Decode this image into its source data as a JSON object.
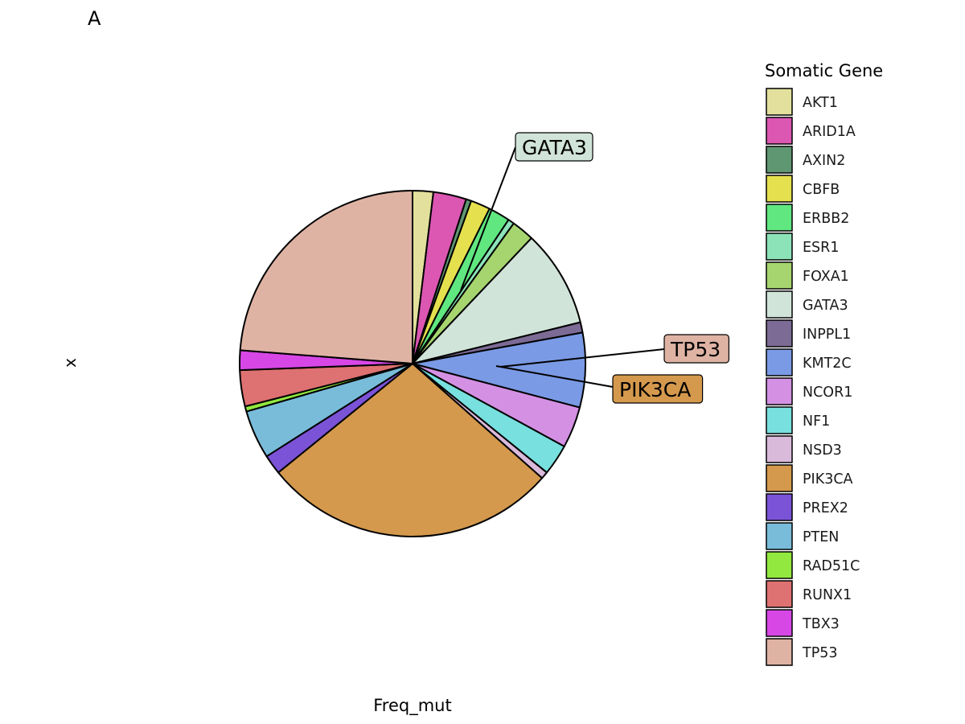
{
  "panel_tag": "A",
  "chart_data": {
    "type": "pie",
    "title": "",
    "xlabel": "Freq_mut",
    "ylabel": "x",
    "legend": {
      "title": "Somatic Gene",
      "placement": "right"
    },
    "categories": [
      "AKT1",
      "ARID1A",
      "AXIN2",
      "CBFB",
      "ERBB2",
      "ESR1",
      "FOXA1",
      "GATA3",
      "INPPL1",
      "KMT2C",
      "NCOR1",
      "NF1",
      "NSD3",
      "PIK3CA",
      "PREX2",
      "PTEN",
      "RAD51C",
      "RUNX1",
      "TBX3",
      "TP53"
    ],
    "values": [
      2.0,
      3.2,
      0.5,
      1.9,
      2.1,
      0.6,
      2.2,
      9.4,
      1.0,
      7.2,
      4.0,
      3.0,
      0.7,
      28.6,
      1.9,
      4.7,
      0.5,
      3.5,
      1.9,
      24.6
    ],
    "colors": [
      "#e3e09d",
      "#db57b2",
      "#609773",
      "#e5e04e",
      "#60e780",
      "#8ce3b8",
      "#a6d56f",
      "#d1e4d9",
      "#7c6b95",
      "#7a9ae5",
      "#d491e4",
      "#78e0de",
      "#dabadb",
      "#d4994d",
      "#7b53d7",
      "#79bcda",
      "#92e83f",
      "#de7171",
      "#d747e6",
      "#dfb3a4"
    ],
    "start_angle_deg": 0,
    "direction": "clockwise",
    "callouts": [
      {
        "label": "GATA3",
        "category": "GATA3"
      },
      {
        "label": "TP53",
        "category": "TP53"
      },
      {
        "label": "PIK3CA",
        "category": "PIK3CA"
      }
    ]
  }
}
